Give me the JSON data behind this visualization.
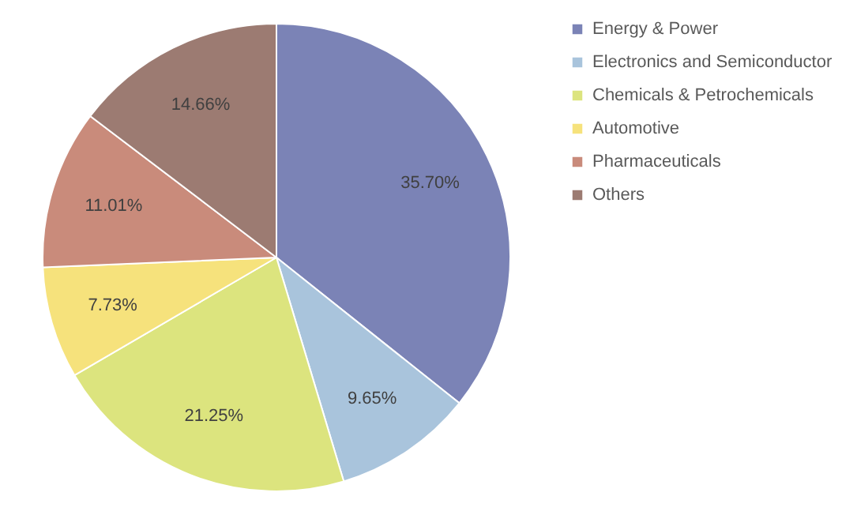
{
  "chart_data": {
    "type": "pie",
    "categories": [
      "Energy & Power",
      "Electronics and Semiconductor",
      "Chemicals & Petrochemicals",
      "Automotive",
      "Pharmaceuticals",
      "Others"
    ],
    "values": [
      35.7,
      9.65,
      21.25,
      7.73,
      11.01,
      14.66
    ],
    "value_labels": [
      "35.70%",
      "9.65%",
      "21.25%",
      "7.73%",
      "11.01%",
      "14.66%"
    ],
    "colors": [
      "#7b83b6",
      "#a9c4dc",
      "#dce47e",
      "#f6e27c",
      "#c98b7b",
      "#9c7b72"
    ],
    "legend": "right"
  }
}
